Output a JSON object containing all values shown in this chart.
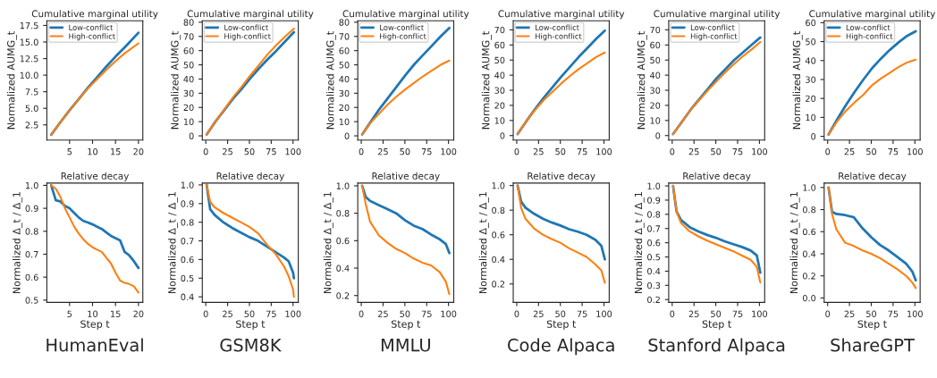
{
  "chart_data": [
    {
      "type": "line",
      "title": "Cumulative marginal utility",
      "ylabel": "Normalized AUMG_t",
      "legend": "top left",
      "xlim": [
        0.05,
        20.95
      ],
      "xticks": [
        5,
        10,
        15,
        20
      ],
      "ylim": [
        0.2,
        18.2
      ],
      "yticks": [
        2.5,
        {
          "value": 5,
          "label": "5.0"
        },
        7.5,
        {
          "value": 10,
          "label": "10.0"
        },
        12.5,
        {
          "value": 15,
          "label": "15.0"
        },
        17.5
      ],
      "x": [
        1,
        3,
        5,
        7,
        9,
        11,
        13,
        15,
        17,
        20
      ],
      "series": [
        {
          "name": "Low-conflict",
          "color": "#1f77b4",
          "values": [
            1.0,
            2.9,
            4.7,
            6.4,
            8.1,
            9.7,
            11.3,
            12.8,
            14.2,
            16.4
          ]
        },
        {
          "name": "High-conflict",
          "color": "#ff7f0e",
          "values": [
            1.0,
            2.9,
            4.7,
            6.4,
            8.0,
            9.4,
            10.8,
            12.1,
            13.3,
            14.8
          ]
        }
      ]
    },
    {
      "type": "line",
      "title": "Cumulative marginal utility",
      "ylabel": "Normalized AUMG_t",
      "legend": "top left",
      "xlim": [
        -4,
        106
      ],
      "xticks": [
        0,
        25,
        50,
        75,
        100
      ],
      "ylim": [
        -3,
        81
      ],
      "yticks": [
        0,
        10,
        20,
        30,
        40,
        50,
        60,
        70,
        80
      ],
      "x": [
        1,
        11,
        21,
        31,
        41,
        51,
        61,
        71,
        81,
        91,
        101
      ],
      "series": [
        {
          "name": "Low-conflict",
          "color": "#1f77b4",
          "values": [
            1,
            10,
            18,
            26,
            33,
            40.5,
            47.5,
            54,
            60,
            66.5,
            73
          ]
        },
        {
          "name": "High-conflict",
          "color": "#ff7f0e",
          "values": [
            1,
            10,
            18.5,
            27,
            34.5,
            42.5,
            50,
            57.5,
            64,
            70,
            75.5
          ]
        }
      ]
    },
    {
      "type": "line",
      "title": "Cumulative marginal utility",
      "ylabel": "Normalized AUMG_t",
      "legend": "top left",
      "xlim": [
        -4,
        106
      ],
      "xticks": [
        0,
        25,
        50,
        75,
        100
      ],
      "ylim": [
        -3,
        81
      ],
      "yticks": [
        0,
        10,
        20,
        30,
        40,
        50,
        60,
        70,
        80
      ],
      "x": [
        1,
        11,
        21,
        31,
        41,
        51,
        61,
        71,
        81,
        91,
        101
      ],
      "series": [
        {
          "name": "Low-conflict",
          "color": "#1f77b4",
          "values": [
            1,
            10,
            19,
            27,
            35,
            43,
            50.5,
            57,
            63.5,
            70,
            76
          ]
        },
        {
          "name": "High-conflict",
          "color": "#ff7f0e",
          "values": [
            1,
            9.5,
            16,
            22.5,
            28,
            33,
            37.5,
            42,
            46,
            50,
            53
          ]
        }
      ]
    },
    {
      "type": "line",
      "title": "Cumulative marginal utility",
      "ylabel": "Normalized AUMG_t",
      "legend": "top left",
      "xlim": [
        -4,
        106
      ],
      "xticks": [
        0,
        25,
        50,
        75,
        100
      ],
      "ylim": [
        -3,
        76
      ],
      "yticks": [
        0,
        10,
        20,
        30,
        40,
        50,
        60,
        70
      ],
      "x": [
        1,
        11,
        21,
        31,
        41,
        51,
        61,
        71,
        81,
        91,
        101
      ],
      "series": [
        {
          "name": "Low-conflict",
          "color": "#1f77b4",
          "values": [
            1,
            9.5,
            17.5,
            25,
            32,
            39,
            45.5,
            52,
            58,
            64,
            69.5
          ]
        },
        {
          "name": "High-conflict",
          "color": "#ff7f0e",
          "values": [
            1,
            9.5,
            17,
            23.5,
            29,
            34.5,
            39.5,
            44,
            48,
            52,
            55
          ]
        }
      ]
    },
    {
      "type": "line",
      "title": "Cumulative marginal utility",
      "ylabel": "Normalized AUMG_t",
      "legend": "top left",
      "xlim": [
        -4,
        106
      ],
      "xticks": [
        0,
        25,
        50,
        75,
        100
      ],
      "ylim": [
        -3,
        76
      ],
      "yticks": [
        0,
        10,
        20,
        30,
        40,
        50,
        60,
        70
      ],
      "x": [
        1,
        11,
        21,
        31,
        41,
        51,
        61,
        71,
        81,
        91,
        101
      ],
      "series": [
        {
          "name": "Low-conflict",
          "color": "#1f77b4",
          "values": [
            1,
            9,
            17,
            24,
            31,
            38,
            44,
            50,
            55,
            60,
            65
          ]
        },
        {
          "name": "High-conflict",
          "color": "#ff7f0e",
          "values": [
            1,
            9,
            17,
            23.5,
            30,
            36,
            42,
            47.5,
            52.5,
            57,
            62
          ]
        }
      ]
    },
    {
      "type": "line",
      "title": "Cumulative marginal utility",
      "ylabel": "Normalized AUMG_t",
      "legend": "top left",
      "xlim": [
        -4,
        106
      ],
      "xticks": [
        0,
        25,
        50,
        75,
        100
      ],
      "ylim": [
        -2,
        61
      ],
      "yticks": [
        0,
        10,
        20,
        30,
        40,
        50,
        60
      ],
      "x": [
        1,
        11,
        21,
        31,
        41,
        51,
        61,
        71,
        81,
        91,
        101
      ],
      "series": [
        {
          "name": "Low-conflict",
          "color": "#1f77b4",
          "values": [
            1,
            9,
            16.5,
            23.5,
            30,
            36,
            41,
            45.5,
            49.5,
            53,
            55.5
          ]
        },
        {
          "name": "High-conflict",
          "color": "#ff7f0e",
          "values": [
            1,
            8,
            13.5,
            18,
            22,
            27,
            30.5,
            33.5,
            36.5,
            39,
            40.5
          ]
        }
      ]
    },
    {
      "type": "line",
      "title": "Relative decay",
      "xlabel": "Step t",
      "ylabel": "Normalized Δ_t / Δ_1",
      "annotations": [
        "HumanEval"
      ],
      "xlim": [
        0.05,
        20.95
      ],
      "xticks": [
        5,
        10,
        15,
        20
      ],
      "ylim": [
        0.49,
        1.01
      ],
      "yticks": [
        0.5,
        0.6,
        0.7,
        0.8,
        0.9,
        {
          "value": 1,
          "label": "1.0"
        }
      ],
      "x": [
        1,
        2,
        3,
        4,
        5,
        6,
        7,
        8,
        9,
        10,
        11,
        12,
        13,
        14,
        15,
        16,
        17,
        18,
        19,
        20
      ],
      "series": [
        {
          "color": "#1f77b4",
          "values": [
            1.0,
            0.935,
            0.93,
            0.91,
            0.9,
            0.88,
            0.86,
            0.845,
            0.838,
            0.83,
            0.82,
            0.81,
            0.795,
            0.78,
            0.77,
            0.76,
            0.71,
            0.695,
            0.67,
            0.64
          ]
        },
        {
          "color": "#ff7f0e",
          "values": [
            1.0,
            0.985,
            0.95,
            0.9,
            0.86,
            0.82,
            0.79,
            0.765,
            0.745,
            0.73,
            0.72,
            0.71,
            0.685,
            0.66,
            0.62,
            0.585,
            0.575,
            0.57,
            0.56,
            0.533
          ]
        }
      ]
    },
    {
      "type": "line",
      "title": "Relative decay",
      "xlabel": "Step t",
      "ylabel": "Normalized Δ_t / Δ_1",
      "annotations": [
        "GSM8K"
      ],
      "xlim": [
        -4,
        106
      ],
      "xticks": [
        0,
        25,
        50,
        75,
        100
      ],
      "ylim": [
        0.37,
        1.01
      ],
      "yticks": [
        0.4,
        0.5,
        0.6,
        0.7,
        0.8,
        0.9,
        {
          "value": 1,
          "label": "1.0"
        }
      ],
      "x": [
        1,
        5,
        10,
        20,
        30,
        40,
        50,
        60,
        70,
        80,
        90,
        95,
        100,
        101
      ],
      "series": [
        {
          "color": "#1f77b4",
          "values": [
            1.0,
            0.87,
            0.84,
            0.8,
            0.77,
            0.745,
            0.72,
            0.7,
            0.67,
            0.64,
            0.61,
            0.59,
            0.53,
            0.5
          ]
        },
        {
          "color": "#ff7f0e",
          "values": [
            1.0,
            0.91,
            0.88,
            0.85,
            0.825,
            0.8,
            0.775,
            0.74,
            0.68,
            0.63,
            0.56,
            0.51,
            0.44,
            0.4
          ]
        }
      ]
    },
    {
      "type": "line",
      "title": "Relative decay",
      "xlabel": "Step t",
      "ylabel": "Normalized Δ_t / Δ_1",
      "annotations": [
        "MMLU"
      ],
      "xlim": [
        -4,
        106
      ],
      "xticks": [
        0,
        25,
        50,
        75,
        100
      ],
      "ylim": [
        0.15,
        1.02
      ],
      "yticks": [
        0.2,
        0.4,
        0.6,
        0.8,
        {
          "value": 1,
          "label": "1.0"
        }
      ],
      "x": [
        1,
        5,
        10,
        20,
        30,
        40,
        50,
        60,
        70,
        80,
        90,
        97,
        101
      ],
      "series": [
        {
          "color": "#1f77b4",
          "values": [
            1.0,
            0.92,
            0.89,
            0.86,
            0.83,
            0.8,
            0.75,
            0.71,
            0.685,
            0.645,
            0.61,
            0.575,
            0.51
          ]
        },
        {
          "color": "#ff7f0e",
          "values": [
            1.0,
            0.87,
            0.74,
            0.64,
            0.585,
            0.54,
            0.51,
            0.47,
            0.44,
            0.42,
            0.37,
            0.3,
            0.21
          ]
        }
      ]
    },
    {
      "type": "line",
      "title": "Relative decay",
      "xlabel": "Step t",
      "ylabel": "Normalized Δ_t / Δ_1",
      "annotations": [
        "Code Alpaca"
      ],
      "xlim": [
        -4,
        106
      ],
      "xticks": [
        0,
        25,
        50,
        75,
        100
      ],
      "ylim": [
        0.05,
        1.02
      ],
      "yticks": [
        0.2,
        0.4,
        0.6,
        0.8,
        {
          "value": 1,
          "label": "1.0"
        }
      ],
      "x": [
        1,
        5,
        10,
        20,
        30,
        40,
        50,
        60,
        70,
        80,
        90,
        97,
        101
      ],
      "series": [
        {
          "color": "#1f77b4",
          "values": [
            1.0,
            0.87,
            0.82,
            0.77,
            0.73,
            0.7,
            0.675,
            0.645,
            0.625,
            0.6,
            0.56,
            0.51,
            0.4
          ]
        },
        {
          "color": "#ff7f0e",
          "values": [
            1.0,
            0.82,
            0.73,
            0.65,
            0.6,
            0.565,
            0.535,
            0.49,
            0.455,
            0.42,
            0.36,
            0.31,
            0.21
          ]
        }
      ]
    },
    {
      "type": "line",
      "title": "Relative decay",
      "xlabel": "Step t",
      "ylabel": "Normalized Δ_t / Δ_1",
      "annotations": [
        "Stanford Alpaca"
      ],
      "xlim": [
        -4,
        106
      ],
      "xticks": [
        0,
        25,
        50,
        75,
        100
      ],
      "ylim": [
        0.18,
        1.02
      ],
      "yticks": [
        0.2,
        0.3,
        0.4,
        0.5,
        0.6,
        0.7,
        0.8,
        0.9,
        {
          "value": 1,
          "label": "1.0"
        }
      ],
      "x": [
        1,
        5,
        10,
        20,
        30,
        40,
        50,
        60,
        70,
        80,
        90,
        97,
        101
      ],
      "series": [
        {
          "color": "#1f77b4",
          "values": [
            1.0,
            0.82,
            0.76,
            0.71,
            0.68,
            0.655,
            0.635,
            0.61,
            0.59,
            0.57,
            0.545,
            0.51,
            0.39
          ]
        },
        {
          "color": "#ff7f0e",
          "values": [
            1.0,
            0.82,
            0.74,
            0.68,
            0.645,
            0.615,
            0.59,
            0.565,
            0.54,
            0.51,
            0.48,
            0.43,
            0.32
          ]
        }
      ]
    },
    {
      "type": "line",
      "title": "Relative decay",
      "xlabel": "Step t",
      "ylabel": "Normalized Δ_t / Δ_1",
      "annotations": [
        "ShareGPT"
      ],
      "xlim": [
        -4,
        106
      ],
      "xticks": [
        0,
        25,
        50,
        75,
        100
      ],
      "ylim": [
        -0.04,
        1.04
      ],
      "yticks": [
        {
          "value": 0,
          "label": "0.0"
        },
        0.2,
        0.4,
        0.6,
        0.8,
        {
          "value": 1,
          "label": "1.0"
        }
      ],
      "x": [
        1,
        5,
        10,
        20,
        30,
        40,
        50,
        60,
        70,
        80,
        90,
        97,
        101
      ],
      "series": [
        {
          "color": "#1f77b4",
          "values": [
            1.0,
            0.78,
            0.76,
            0.75,
            0.73,
            0.63,
            0.55,
            0.48,
            0.43,
            0.37,
            0.31,
            0.24,
            0.16
          ]
        },
        {
          "color": "#ff7f0e",
          "values": [
            1.0,
            0.76,
            0.62,
            0.5,
            0.47,
            0.43,
            0.4,
            0.36,
            0.31,
            0.26,
            0.2,
            0.14,
            0.09
          ]
        }
      ]
    }
  ]
}
